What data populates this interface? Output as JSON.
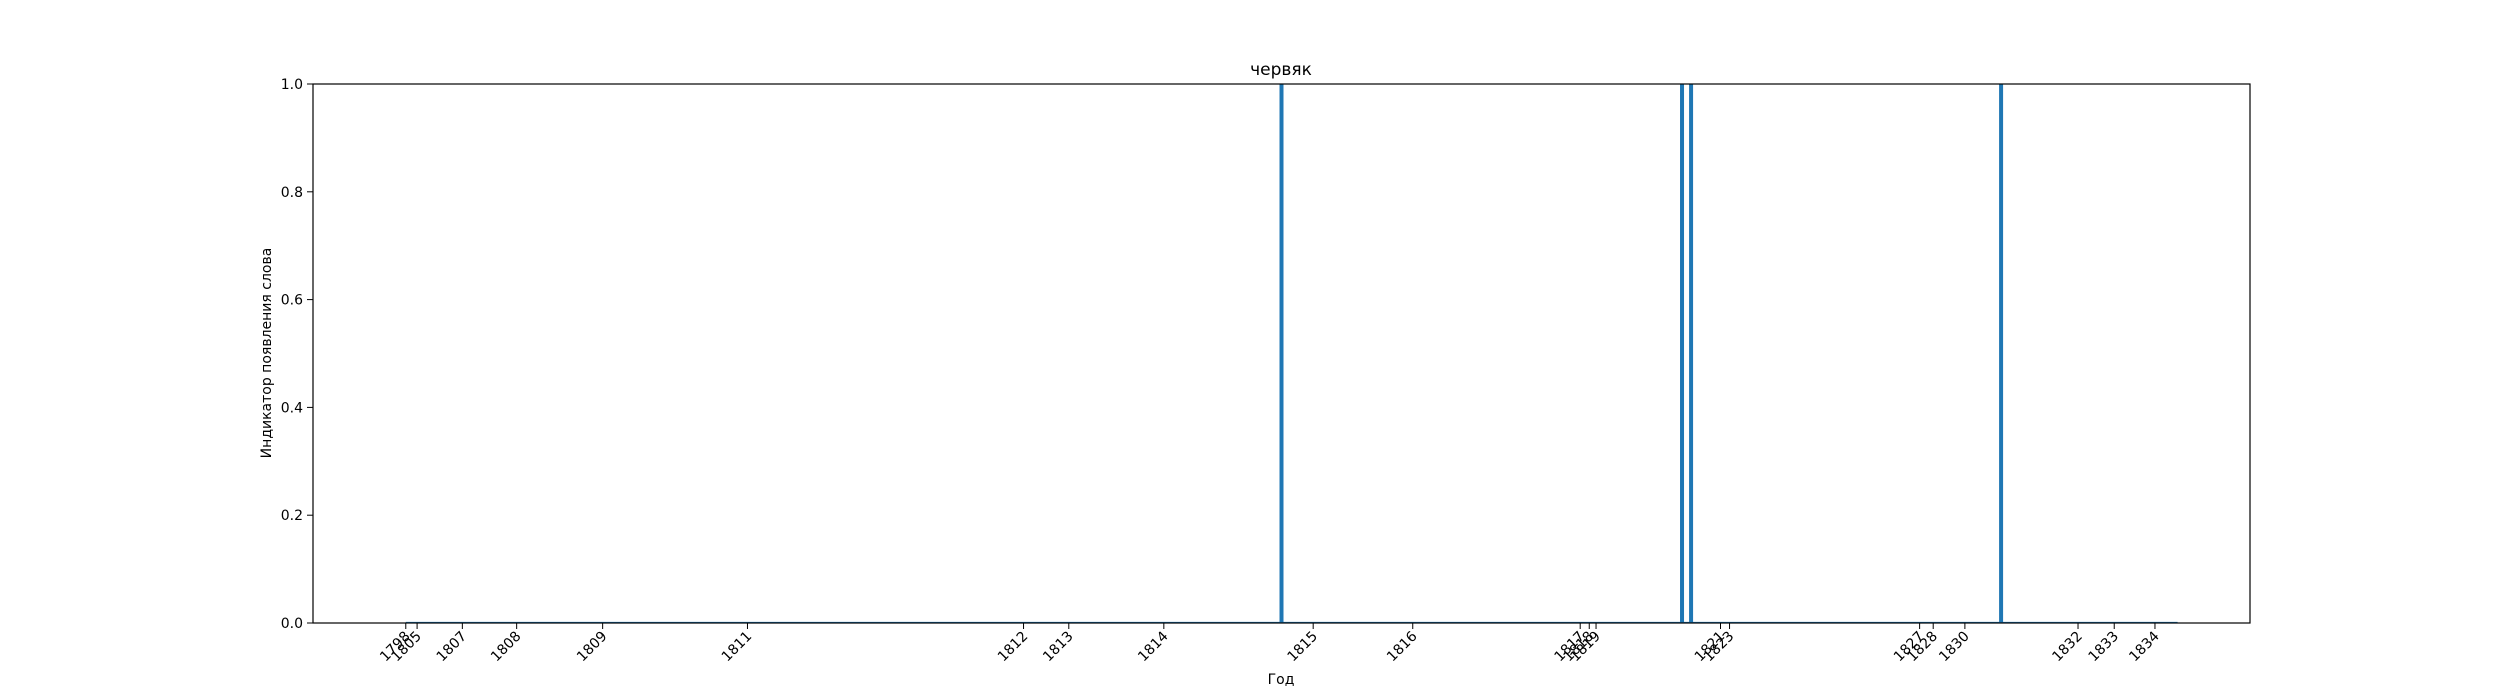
{
  "chart_data": {
    "type": "bar",
    "title": "червяк",
    "xlabel": "Год",
    "ylabel": "Индикатор появления слова",
    "ylim": [
      0,
      1
    ],
    "yticks": [
      "0.0",
      "0.2",
      "0.4",
      "0.6",
      "0.8",
      "1.0"
    ],
    "xlim": [
      1795.8,
      1838.6
    ],
    "xticks": [
      {
        "value": 1797.85,
        "label": "1798"
      },
      {
        "value": 1798.1,
        "label": "1805"
      },
      {
        "value": 1799.1,
        "label": "1807"
      },
      {
        "value": 1800.3,
        "label": "1808"
      },
      {
        "value": 1802.2,
        "label": "1809"
      },
      {
        "value": 1805.4,
        "label": "1811"
      },
      {
        "value": 1811.5,
        "label": "1812"
      },
      {
        "value": 1812.5,
        "label": "1813"
      },
      {
        "value": 1814.6,
        "label": "1814"
      },
      {
        "value": 1817.9,
        "label": "1815"
      },
      {
        "value": 1820.1,
        "label": "1816"
      },
      {
        "value": 1823.8,
        "label": "1817"
      },
      {
        "value": 1824.0,
        "label": "1818"
      },
      {
        "value": 1824.15,
        "label": "1819"
      },
      {
        "value": 1826.9,
        "label": "1821"
      },
      {
        "value": 1827.1,
        "label": "1823"
      },
      {
        "value": 1831.3,
        "label": "1827"
      },
      {
        "value": 1831.6,
        "label": "1828"
      },
      {
        "value": 1832.3,
        "label": "1830"
      },
      {
        "value": 1834.8,
        "label": "1832"
      },
      {
        "value": 1835.6,
        "label": "1833"
      },
      {
        "value": 1836.5,
        "label": "1834"
      }
    ],
    "bars": [
      {
        "x": 1817.2,
        "value": 1
      },
      {
        "x": 1826.05,
        "value": 1
      },
      {
        "x": 1826.25,
        "value": 1
      },
      {
        "x": 1833.1,
        "value": 1
      }
    ],
    "baseline": {
      "from": 1797.85,
      "to": 1837.0
    },
    "color": "#1f77b4"
  }
}
